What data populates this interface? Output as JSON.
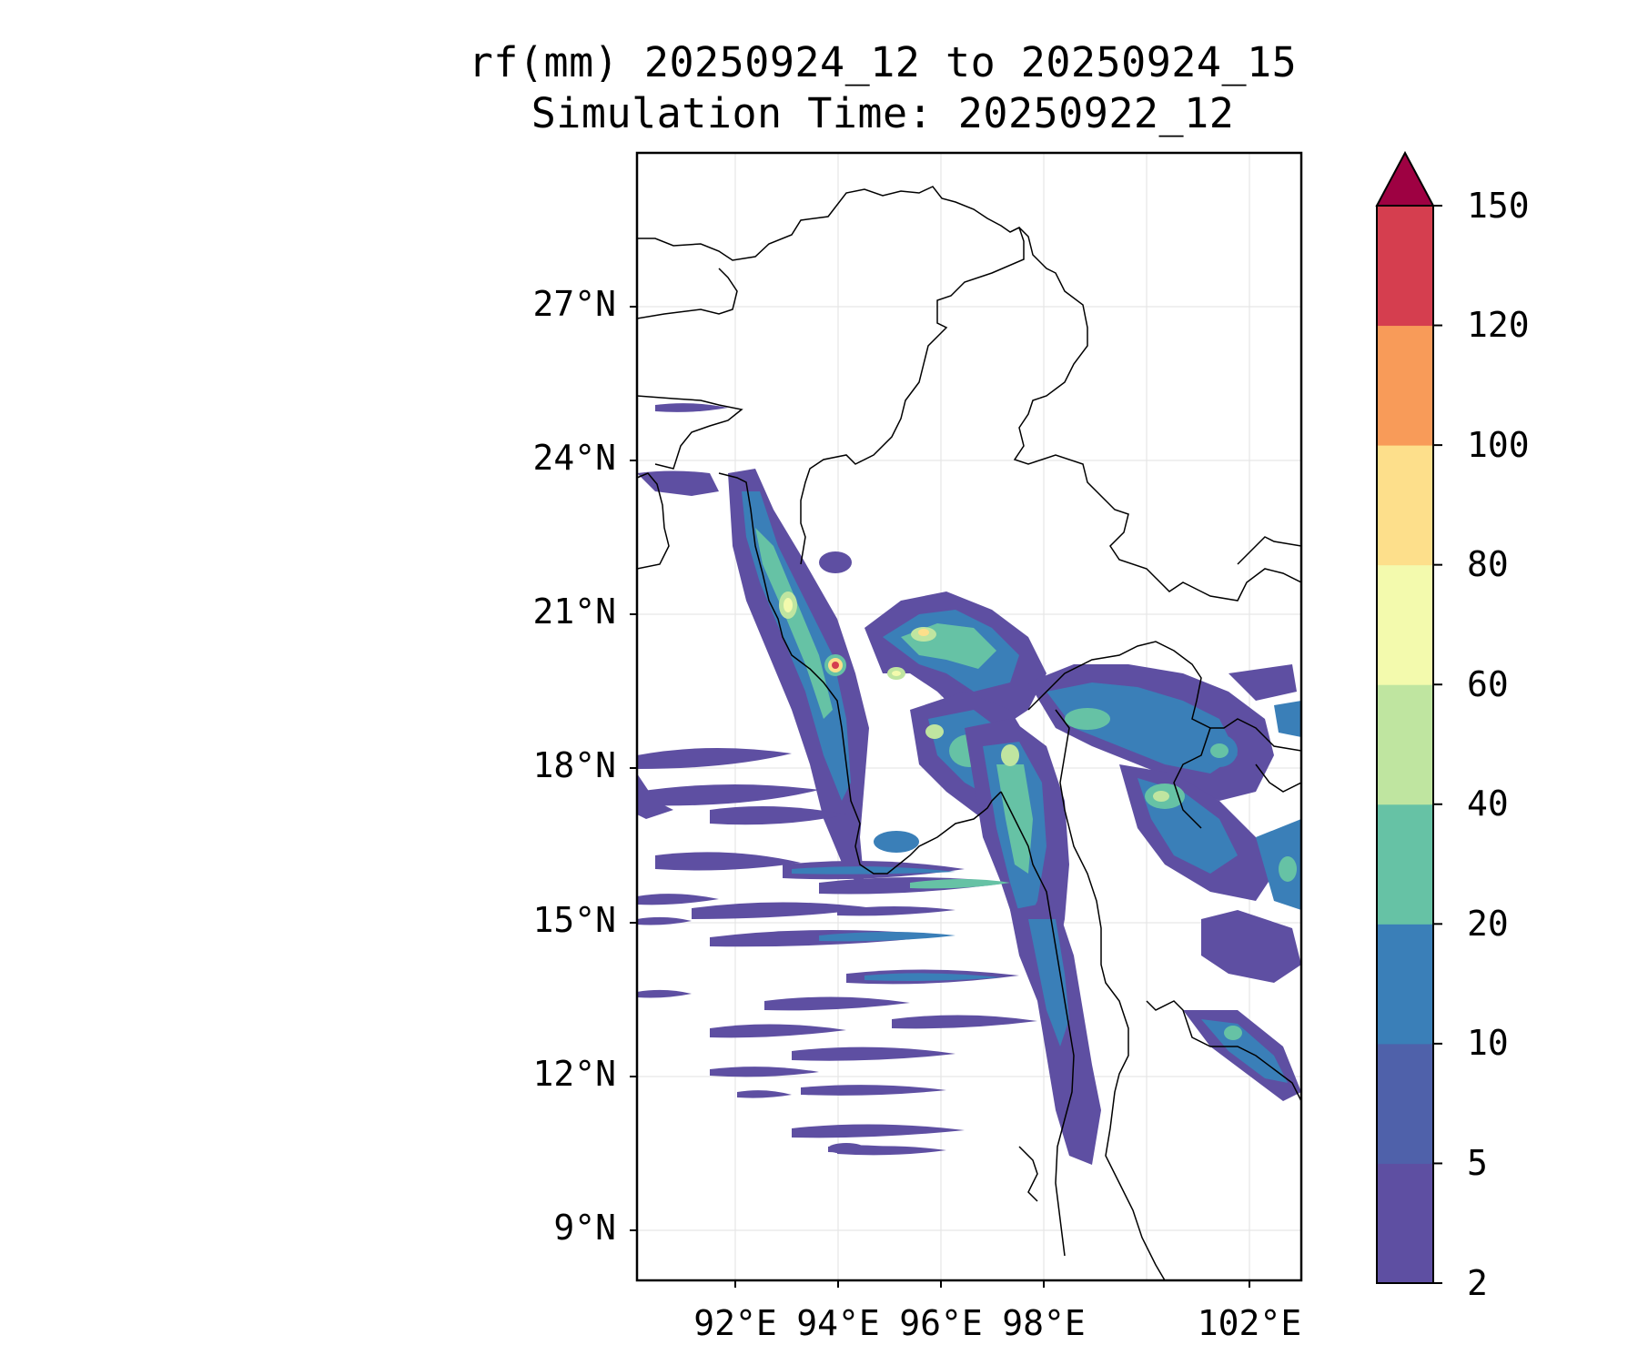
{
  "title_line1": "rf(mm) 20250924_12 to 20250924_15",
  "title_line2": "Simulation Time: 20250922_12",
  "lat_labels": [
    "27°N",
    "24°N",
    "21°N",
    "18°N",
    "15°N",
    "12°N",
    "9°N"
  ],
  "lon_labels": [
    "92°E",
    "94°E",
    "96°E",
    "98°E",
    "102°E"
  ],
  "colorbar": {
    "levels": [
      "2",
      "5",
      "10",
      "20",
      "40",
      "60",
      "80",
      "100",
      "120",
      "150"
    ],
    "colors": [
      "#5e4fa2",
      "#4f61aa",
      "#3a7fb8",
      "#66c2a5",
      "#bfe5a0",
      "#f3faad",
      "#fddf8b",
      "#f89b59",
      "#d53e4f",
      "#9e0142"
    ],
    "extend": "max"
  },
  "colors": {
    "frame": "#000000",
    "grid": "#e6e6e6",
    "borders": "#000000"
  }
}
